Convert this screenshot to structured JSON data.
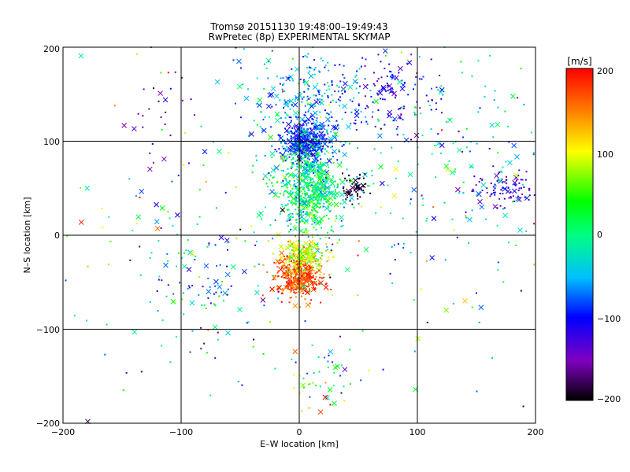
{
  "title": "Tromsø 20151130 19:48:00–19:49:43",
  "subtitle": "RwPretec (8p) EXPERIMENTAL SKYMAP",
  "chart_data": {
    "type": "scatter",
    "xlabel": "E–W location [km]",
    "ylabel": "N–S location [km]",
    "xlim": [
      -200,
      200
    ],
    "ylim": [
      -200,
      200
    ],
    "x_ticks": [
      "−200",
      "−100",
      "0",
      "100",
      "200"
    ],
    "y_ticks": [
      "−200",
      "−100",
      "0",
      "100",
      "200"
    ],
    "grid": true,
    "colorbar": {
      "title": "[m/s]",
      "range": [
        -200,
        200
      ],
      "ticks": [
        "200",
        "100",
        "0",
        "−100",
        "−200"
      ],
      "placement": "right",
      "colors": [
        "#000000",
        "#8000c0",
        "#0000ff",
        "#00c0ff",
        "#00ff80",
        "#00ff00",
        "#ffff00",
        "#ff8000",
        "#ff0000"
      ]
    },
    "marker_kinds": [
      "dot",
      "x"
    ],
    "clusters": [
      {
        "name": "northern blue core",
        "x": 5,
        "y": 100,
        "sx": 10,
        "sy": 10,
        "n": 420,
        "v": -95,
        "vs": 20
      },
      {
        "name": "central green column",
        "x": 8,
        "y": 50,
        "sx": 14,
        "sy": 25,
        "n": 650,
        "v": 0,
        "vs": 40
      },
      {
        "name": "northern cyan spread",
        "x": 5,
        "y": 140,
        "sx": 25,
        "sy": 30,
        "n": 320,
        "v": -60,
        "vs": 40
      },
      {
        "name": "southern red core",
        "x": 0,
        "y": -45,
        "sx": 10,
        "sy": 11,
        "n": 380,
        "v": 170,
        "vs": 25
      },
      {
        "name": "southern yellow band",
        "x": 3,
        "y": -22,
        "sx": 10,
        "sy": 8,
        "n": 210,
        "v": 95,
        "vs": 30
      },
      {
        "name": "black patch",
        "x": 48,
        "y": 50,
        "sx": 5,
        "sy": 8,
        "n": 60,
        "v": -190,
        "vs": 10
      },
      {
        "name": "east purple patch",
        "x": 178,
        "y": 50,
        "sx": 14,
        "sy": 9,
        "n": 90,
        "v": -130,
        "vs": 20
      },
      {
        "name": "northeast blue patch",
        "x": 80,
        "y": 150,
        "sx": 18,
        "sy": 20,
        "n": 110,
        "v": -110,
        "vs": 25
      },
      {
        "name": "east cyan scatter",
        "x": 130,
        "y": 80,
        "sx": 40,
        "sy": 50,
        "n": 150,
        "v": -40,
        "vs": 50
      },
      {
        "name": "northwest purple",
        "x": -120,
        "y": 130,
        "sx": 15,
        "sy": 25,
        "n": 25,
        "v": -150,
        "vs": 20
      },
      {
        "name": "southwest cyan",
        "x": -80,
        "y": -50,
        "sx": 25,
        "sy": 30,
        "n": 80,
        "v": -40,
        "vs": 50
      },
      {
        "name": "south cluster",
        "x": 20,
        "y": -150,
        "sx": 15,
        "sy": 20,
        "n": 50,
        "v": 20,
        "vs": 80
      },
      {
        "name": "background scatter",
        "x": 0,
        "y": 0,
        "sx": 120,
        "sy": 110,
        "n": 300,
        "v": 0,
        "vs": 100
      }
    ]
  }
}
